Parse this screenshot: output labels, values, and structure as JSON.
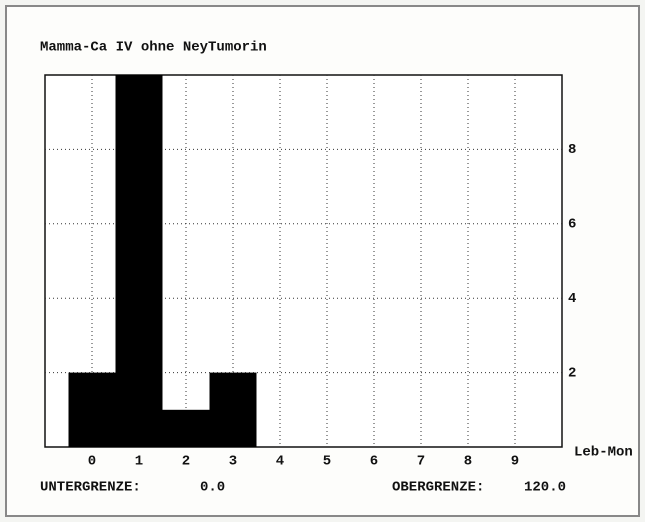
{
  "chart_data": {
    "type": "bar",
    "title": "Mamma-Ca IV ohne NeyTumorin",
    "categories": [
      "0",
      "1",
      "2",
      "3",
      "4",
      "5",
      "6",
      "7",
      "8",
      "9"
    ],
    "values": [
      2,
      10,
      1,
      2,
      0,
      0,
      0,
      0,
      0,
      0
    ],
    "color": "#000000",
    "x_label": "Leb-Mon",
    "ylim": [
      0,
      10
    ],
    "yticks": [
      2,
      4,
      6,
      8
    ],
    "grid": true,
    "lower_limit_label": "UNTERGRENZE:",
    "lower_limit": "0.0",
    "upper_limit_label": "OBERGRENZE:",
    "upper_limit": "120.0"
  }
}
